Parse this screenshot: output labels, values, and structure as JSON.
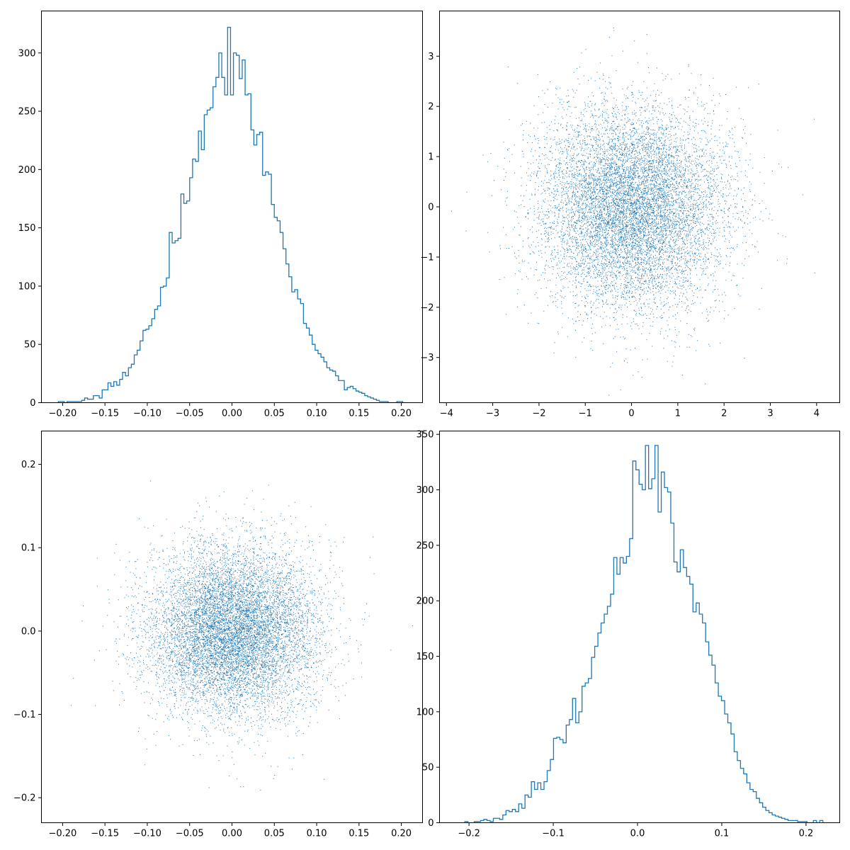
{
  "colors": {
    "series": "#1f77b4",
    "axes": "#000000",
    "background": "#ffffff"
  },
  "chart_data": [
    {
      "type": "histogram",
      "position": "top-left",
      "title": "",
      "xlabel": "",
      "ylabel": "",
      "xlim": [
        -0.225,
        0.225
      ],
      "ylim": [
        0,
        336
      ],
      "xticks": [
        -0.2,
        -0.15,
        -0.1,
        -0.05,
        0.0,
        0.05,
        0.1,
        0.15,
        0.2
      ],
      "xtick_labels": [
        "−0.20",
        "−0.15",
        "−0.10",
        "−0.05",
        "0.00",
        "0.05",
        "0.10",
        "0.15",
        "0.20"
      ],
      "yticks": [
        0,
        50,
        100,
        150,
        200,
        250,
        300
      ],
      "ytick_labels": [
        "0",
        "50",
        "100",
        "150",
        "200",
        "250",
        "300"
      ],
      "bin_range": [
        -0.205,
        0.205
      ],
      "counts": [
        1,
        1,
        0,
        1,
        1,
        1,
        1,
        1,
        2,
        4,
        3,
        3,
        6,
        6,
        4,
        11,
        11,
        17,
        14,
        18,
        15,
        20,
        26,
        23,
        30,
        33,
        41,
        45,
        53,
        62,
        63,
        66,
        72,
        80,
        83,
        99,
        100,
        107,
        146,
        137,
        139,
        141,
        179,
        171,
        173,
        193,
        209,
        207,
        233,
        217,
        247,
        251,
        253,
        271,
        279,
        300,
        279,
        264,
        322,
        264,
        300,
        298,
        278,
        294,
        264,
        265,
        234,
        221,
        230,
        232,
        195,
        198,
        196,
        170,
        159,
        156,
        146,
        132,
        119,
        108,
        95,
        97,
        89,
        85,
        68,
        64,
        58,
        50,
        45,
        42,
        39,
        35,
        30,
        28,
        27,
        23,
        19,
        19,
        11,
        13,
        14,
        12,
        10,
        9,
        8,
        6,
        5,
        4,
        3,
        2,
        1,
        1,
        1,
        0,
        0,
        0,
        1,
        1,
        0
      ]
    },
    {
      "type": "scatter",
      "position": "top-right",
      "title": "",
      "xlabel": "",
      "ylabel": "",
      "xlim": [
        -4.15,
        4.5
      ],
      "ylim": [
        -3.9,
        3.9
      ],
      "xticks": [
        -4,
        -3,
        -2,
        -1,
        0,
        1,
        2,
        3,
        4
      ],
      "xtick_labels": [
        "−4",
        "−3",
        "−2",
        "−1",
        "0",
        "1",
        "2",
        "3",
        "4"
      ],
      "yticks": [
        -3,
        -2,
        -1,
        0,
        1,
        2,
        3
      ],
      "ytick_labels": [
        "−3",
        "−2",
        "−1",
        "0",
        "1",
        "2",
        "3"
      ],
      "distribution": {
        "kind": "bivariate normal",
        "mean": [
          0,
          0
        ],
        "std": [
          1,
          1
        ],
        "n_points": 10000
      }
    },
    {
      "type": "scatter",
      "position": "bottom-left",
      "title": "",
      "xlabel": "",
      "ylabel": "",
      "xlim": [
        -0.225,
        0.225
      ],
      "ylim": [
        -0.23,
        0.24
      ],
      "xticks": [
        -0.2,
        -0.15,
        -0.1,
        -0.05,
        0.0,
        0.05,
        0.1,
        0.15,
        0.2
      ],
      "xtick_labels": [
        "−0.20",
        "−0.15",
        "−0.10",
        "−0.05",
        "0.00",
        "0.05",
        "0.10",
        "0.15",
        "0.20"
      ],
      "yticks": [
        -0.2,
        -0.1,
        0.0,
        0.1,
        0.2
      ],
      "ytick_labels": [
        "−0.2",
        "−0.1",
        "0.0",
        "0.1",
        "0.2"
      ],
      "distribution": {
        "kind": "bivariate normal",
        "mean": [
          0,
          0
        ],
        "std": [
          0.05,
          0.05
        ],
        "n_points": 10000
      }
    },
    {
      "type": "histogram",
      "position": "bottom-right",
      "title": "",
      "xlabel": "",
      "ylabel": "",
      "xlim": [
        -0.235,
        0.24
      ],
      "ylim": [
        0,
        353
      ],
      "xticks": [
        -0.2,
        -0.1,
        0.0,
        0.1,
        0.2
      ],
      "xtick_labels": [
        "−0.2",
        "−0.1",
        "0.0",
        "0.1",
        "0.2"
      ],
      "yticks": [
        0,
        50,
        100,
        150,
        200,
        250,
        300,
        350
      ],
      "ytick_labels": [
        "0",
        "50",
        "100",
        "150",
        "200",
        "250",
        "300",
        "350"
      ],
      "bin_range": [
        -0.205,
        0.22
      ],
      "counts": [
        1,
        0,
        0,
        1,
        1,
        2,
        3,
        2,
        1,
        4,
        4,
        3,
        7,
        11,
        10,
        12,
        10,
        17,
        13,
        25,
        23,
        37,
        30,
        36,
        30,
        37,
        47,
        57,
        76,
        77,
        75,
        72,
        88,
        93,
        112,
        90,
        100,
        123,
        126,
        130,
        149,
        159,
        171,
        180,
        188,
        195,
        206,
        239,
        224,
        239,
        234,
        240,
        256,
        326,
        318,
        305,
        300,
        340,
        301,
        310,
        340,
        280,
        316,
        302,
        298,
        270,
        235,
        226,
        246,
        230,
        222,
        215,
        190,
        198,
        188,
        180,
        163,
        151,
        142,
        126,
        114,
        110,
        98,
        90,
        80,
        64,
        56,
        49,
        44,
        36,
        30,
        28,
        22,
        18,
        14,
        11,
        9,
        7,
        6,
        5,
        4,
        3,
        2,
        2,
        2,
        1,
        1,
        1,
        0,
        0,
        2,
        0,
        2
      ]
    }
  ]
}
